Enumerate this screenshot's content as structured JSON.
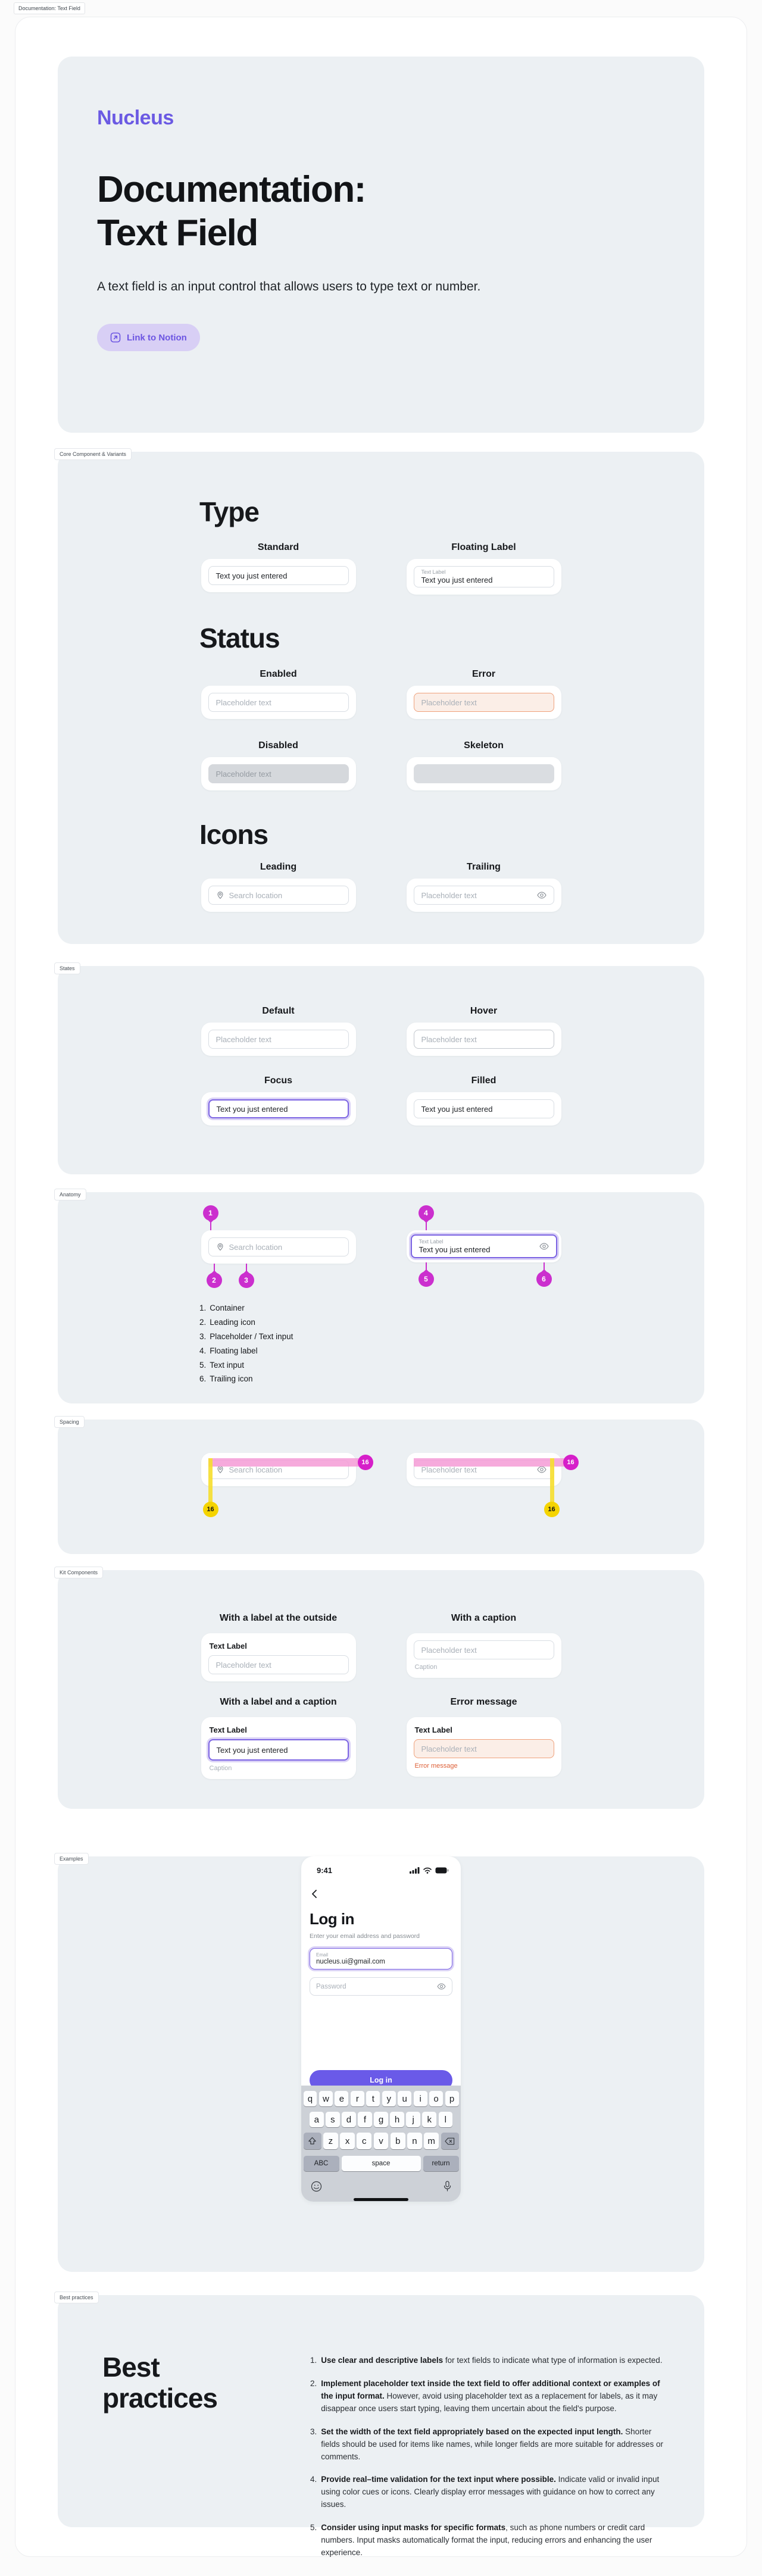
{
  "frame_label": "Documentation: Text Field",
  "hero": {
    "logo": "Nucleus",
    "title_line1": "Documentation:",
    "title_line2": "Text Field",
    "description": "A text field is an input control that allows users to type text or number.",
    "notion_button_label": "Link to Notion"
  },
  "samples": {
    "entered_text": "Text you just entered",
    "placeholder": "Placeholder text",
    "search_placeholder": "Search location",
    "text_label": "Text Label",
    "caption": "Caption",
    "error_message": "Error message"
  },
  "core_section": {
    "tag": "Core Component & Variants",
    "type_heading": "Type",
    "standard_label": "Standard",
    "floating_label": "Floating Label",
    "status_heading": "Status",
    "enabled_label": "Enabled",
    "error_label": "Error",
    "disabled_label": "Disabled",
    "skeleton_label": "Skeleton",
    "icons_heading": "Icons",
    "leading_label": "Leading",
    "trailing_label": "Trailing"
  },
  "states_section": {
    "tag": "States",
    "default_label": "Default",
    "hover_label": "Hover",
    "focus_label": "Focus",
    "filled_label": "Filled"
  },
  "anatomy_section": {
    "tag": "Anatomy",
    "markers": [
      "1",
      "2",
      "3",
      "4",
      "5",
      "6"
    ],
    "legend": [
      {
        "num": "1.",
        "label": "Container"
      },
      {
        "num": "2.",
        "label": "Leading icon"
      },
      {
        "num": "3.",
        "label": "Placeholder / Text input"
      },
      {
        "num": "4.",
        "label": "Floating label"
      },
      {
        "num": "5.",
        "label": "Text input"
      },
      {
        "num": "6.",
        "label": "Trailing icon"
      }
    ]
  },
  "spacing_section": {
    "tag": "Spacing",
    "badges": [
      "16",
      "16",
      "16",
      "16"
    ]
  },
  "kit_section": {
    "tag": "Kit Components",
    "header_label_outside": "With a label at the outside",
    "header_caption": "With a  caption",
    "header_label_caption": "With a label and a caption",
    "header_error": "Error message"
  },
  "examples_section": {
    "tag": "Examples",
    "phone": {
      "time": "9:41",
      "title": "Log in",
      "subtitle": "Enter your email address and password",
      "email_label": "Email",
      "email_value": "nucleus.ui@gmail.com",
      "password_placeholder": "Password",
      "login_button": "Log in",
      "keyboard": {
        "row1": [
          "q",
          "w",
          "e",
          "r",
          "t",
          "y",
          "u",
          "i",
          "o",
          "p"
        ],
        "row2": [
          "a",
          "s",
          "d",
          "f",
          "g",
          "h",
          "j",
          "k",
          "l"
        ],
        "row3": [
          "z",
          "x",
          "c",
          "v",
          "b",
          "n",
          "m"
        ],
        "abc_key": "ABC",
        "space_key": "space",
        "return_key": "return"
      }
    }
  },
  "best_section": {
    "tag": "Best practices",
    "heading_line1": "Best",
    "heading_line2": "practices",
    "items": [
      {
        "num": "1.",
        "bold": "Use clear and descriptive labels",
        "text": " for text fields to indicate what type of information is expected."
      },
      {
        "num": "2.",
        "bold": "Implement placeholder text inside the text field to offer additional context or examples of the input format.",
        "text": " However, avoid using placeholder text as a replacement for labels, as it may disappear once users start typing, leaving them uncertain about the field's purpose."
      },
      {
        "num": "3.",
        "bold": "Set the width of the text field appropriately based on the expected input length.",
        "text": " Shorter fields should be used for items like names, while longer fields are more suitable for addresses or comments."
      },
      {
        "num": "4.",
        "bold": "Provide real–time validation for the text input where possible.",
        "text": " Indicate valid or invalid input using color cues or icons. Clearly display error messages with guidance on how to correct any issues."
      },
      {
        "num": "5.",
        "bold": "Consider using input masks for specific formats",
        "text": ", such as phone numbers or credit card numbers. Input masks automatically format the input, reducing errors and enhancing the user experience."
      }
    ]
  },
  "colors": {
    "accent": "#6C5CE7",
    "accent_light": "#D8CFF5",
    "focus_border": "#7C64E3",
    "error_border": "#EFA17B",
    "error_bg": "#FBEEE7",
    "error_text": "#DD6038",
    "marker_magenta": "#CB2FCE",
    "spacing_pink": "#F49BD6",
    "spacing_yellow": "#F5D400",
    "card_bg": "#ECF0F3"
  }
}
